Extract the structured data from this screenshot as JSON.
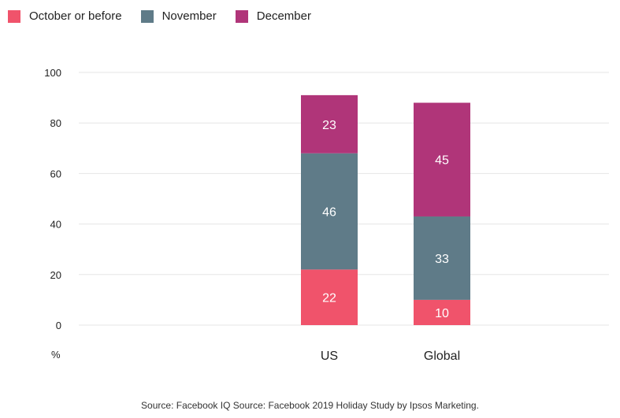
{
  "chart_data": {
    "type": "bar",
    "stacked": true,
    "categories": [
      "US",
      "Global"
    ],
    "series": [
      {
        "name": "October or before",
        "color": "#f0536b",
        "values": [
          22,
          10
        ]
      },
      {
        "name": "November",
        "color": "#5f7b88",
        "values": [
          46,
          33
        ]
      },
      {
        "name": "December",
        "color": "#b03579",
        "values": [
          23,
          45
        ]
      }
    ],
    "ylabel": "%",
    "ylim": [
      0,
      100
    ],
    "yticks": [
      0,
      20,
      40,
      60,
      80,
      100
    ],
    "grid": true,
    "legend_position": "top-left",
    "data_labels": true
  },
  "source": "Source: Facebook IQ Source: Facebook 2019 Holiday Study by Ipsos Marketing."
}
